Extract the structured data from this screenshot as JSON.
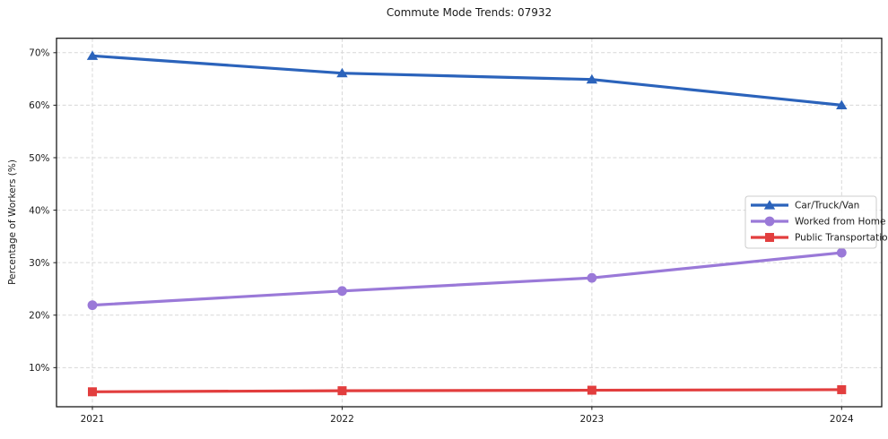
{
  "chart_data": {
    "type": "line",
    "title": "Commute Mode Trends: 07932",
    "xlabel": "",
    "ylabel": "Percentage of Workers (%)",
    "categories": [
      "2021",
      "2022",
      "2023",
      "2024"
    ],
    "series": [
      {
        "name": "Car/Truck/Van",
        "color": "#2b63bb",
        "marker": "triangle",
        "values": [
          69.4,
          66.1,
          64.9,
          60.0
        ]
      },
      {
        "name": "Worked from Home",
        "color": "#9a79d8",
        "marker": "circle",
        "values": [
          21.9,
          24.6,
          27.1,
          31.9
        ]
      },
      {
        "name": "Public Transportation",
        "color": "#e23e3e",
        "marker": "square",
        "values": [
          5.4,
          5.6,
          5.7,
          5.8
        ]
      }
    ],
    "ylim": [
      2.55,
      72.75
    ],
    "yticks": [
      10,
      20,
      30,
      40,
      50,
      60,
      70
    ],
    "ytick_suffix": "%",
    "grid": true,
    "grid_style": "dashed",
    "legend_position": "right",
    "colors": {
      "axes_frame": "#1a1a1a",
      "grid_line": "#d7d7d7",
      "tick_text": "#1a1a1a",
      "legend_border": "#cccccc",
      "legend_background": "#ffffff"
    }
  }
}
